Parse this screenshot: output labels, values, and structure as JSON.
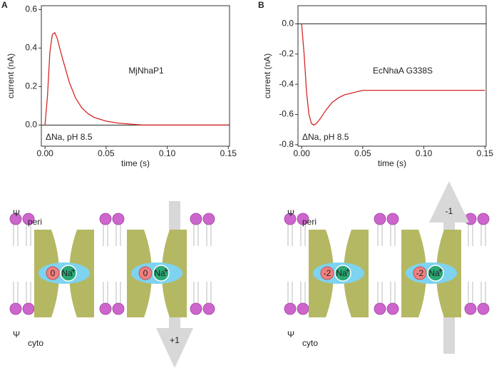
{
  "chart_data": [
    {
      "type": "line",
      "panel": "A",
      "ylabel": "current (nA)",
      "xlabel": "time (s)",
      "annotation": "MjNhaP1",
      "condition": "ΔNa, pH 8.5",
      "x": [
        0,
        0.002,
        0.004,
        0.006,
        0.008,
        0.01,
        0.012,
        0.015,
        0.02,
        0.025,
        0.03,
        0.035,
        0.04,
        0.05,
        0.06,
        0.07,
        0.08,
        0.1,
        0.12,
        0.15
      ],
      "series": [
        {
          "color": "#d62728",
          "values": [
            0,
            0.15,
            0.38,
            0.47,
            0.48,
            0.45,
            0.4,
            0.33,
            0.22,
            0.14,
            0.09,
            0.06,
            0.04,
            0.02,
            0.01,
            0.005,
            0,
            0,
            0,
            0
          ]
        }
      ],
      "xlim": [
        -0.003,
        0.151
      ],
      "xticks": [
        {
          "value": 0,
          "label": "0.00"
        },
        {
          "value": 0.05,
          "label": "0.05"
        },
        {
          "value": 0.1,
          "label": "0.10"
        },
        {
          "value": 0.15,
          "label": "0.15"
        }
      ],
      "ylim": [
        -0.11,
        0.62
      ],
      "yticks": [
        {
          "value": 0,
          "label": "0.0"
        },
        {
          "value": 0.2,
          "label": "0.2"
        },
        {
          "value": 0.4,
          "label": "0.4"
        },
        {
          "value": 0.6,
          "label": "0.6"
        }
      ]
    },
    {
      "type": "line",
      "panel": "B",
      "ylabel": "current (nA)",
      "xlabel": "time (s)",
      "annotation": "EcNhaA G338S",
      "condition": "ΔNa, pH 8.5",
      "x": [
        0,
        0.002,
        0.004,
        0.006,
        0.008,
        0.01,
        0.012,
        0.015,
        0.02,
        0.025,
        0.03,
        0.035,
        0.04,
        0.05,
        0.06,
        0.07,
        0.08,
        0.1,
        0.12,
        0.15
      ],
      "series": [
        {
          "color": "#d62728",
          "values": [
            0,
            -0.2,
            -0.45,
            -0.6,
            -0.66,
            -0.67,
            -0.66,
            -0.63,
            -0.57,
            -0.52,
            -0.49,
            -0.47,
            -0.46,
            -0.44,
            -0.44,
            -0.44,
            -0.44,
            -0.44,
            -0.44,
            -0.44
          ]
        }
      ],
      "xlim": [
        -0.003,
        0.151
      ],
      "xticks": [
        {
          "value": 0,
          "label": "0.00"
        },
        {
          "value": 0.05,
          "label": "0.05"
        },
        {
          "value": 0.1,
          "label": "0.10"
        },
        {
          "value": 0.15,
          "label": "0.15"
        }
      ],
      "ylim": [
        -0.81,
        0.12
      ],
      "yticks": [
        {
          "value": 0,
          "label": "0.0"
        },
        {
          "value": -0.2,
          "label": "-0.2"
        },
        {
          "value": -0.4,
          "label": "-0.4"
        },
        {
          "value": -0.6,
          "label": "-0.6"
        },
        {
          "value": -0.8,
          "label": "-0.8"
        }
      ]
    }
  ],
  "diagrams": [
    {
      "psi": "Ψ",
      "peri": "peri",
      "cyto": "cyto",
      "transporters": [
        {
          "charge": "0",
          "ion": "Na",
          "ion_sup": "+"
        },
        {
          "charge": "0",
          "ion": "Na",
          "ion_sup": "+"
        }
      ],
      "arrow_label": "+1"
    },
    {
      "psi": "Ψ",
      "peri": "peri",
      "cyto": "cyto",
      "transporters": [
        {
          "charge": "-2",
          "ion": "Na",
          "ion_sup": "+"
        },
        {
          "charge": "-2",
          "ion": "Na",
          "ion_sup": "+"
        }
      ],
      "arrow_label": "-1"
    }
  ]
}
